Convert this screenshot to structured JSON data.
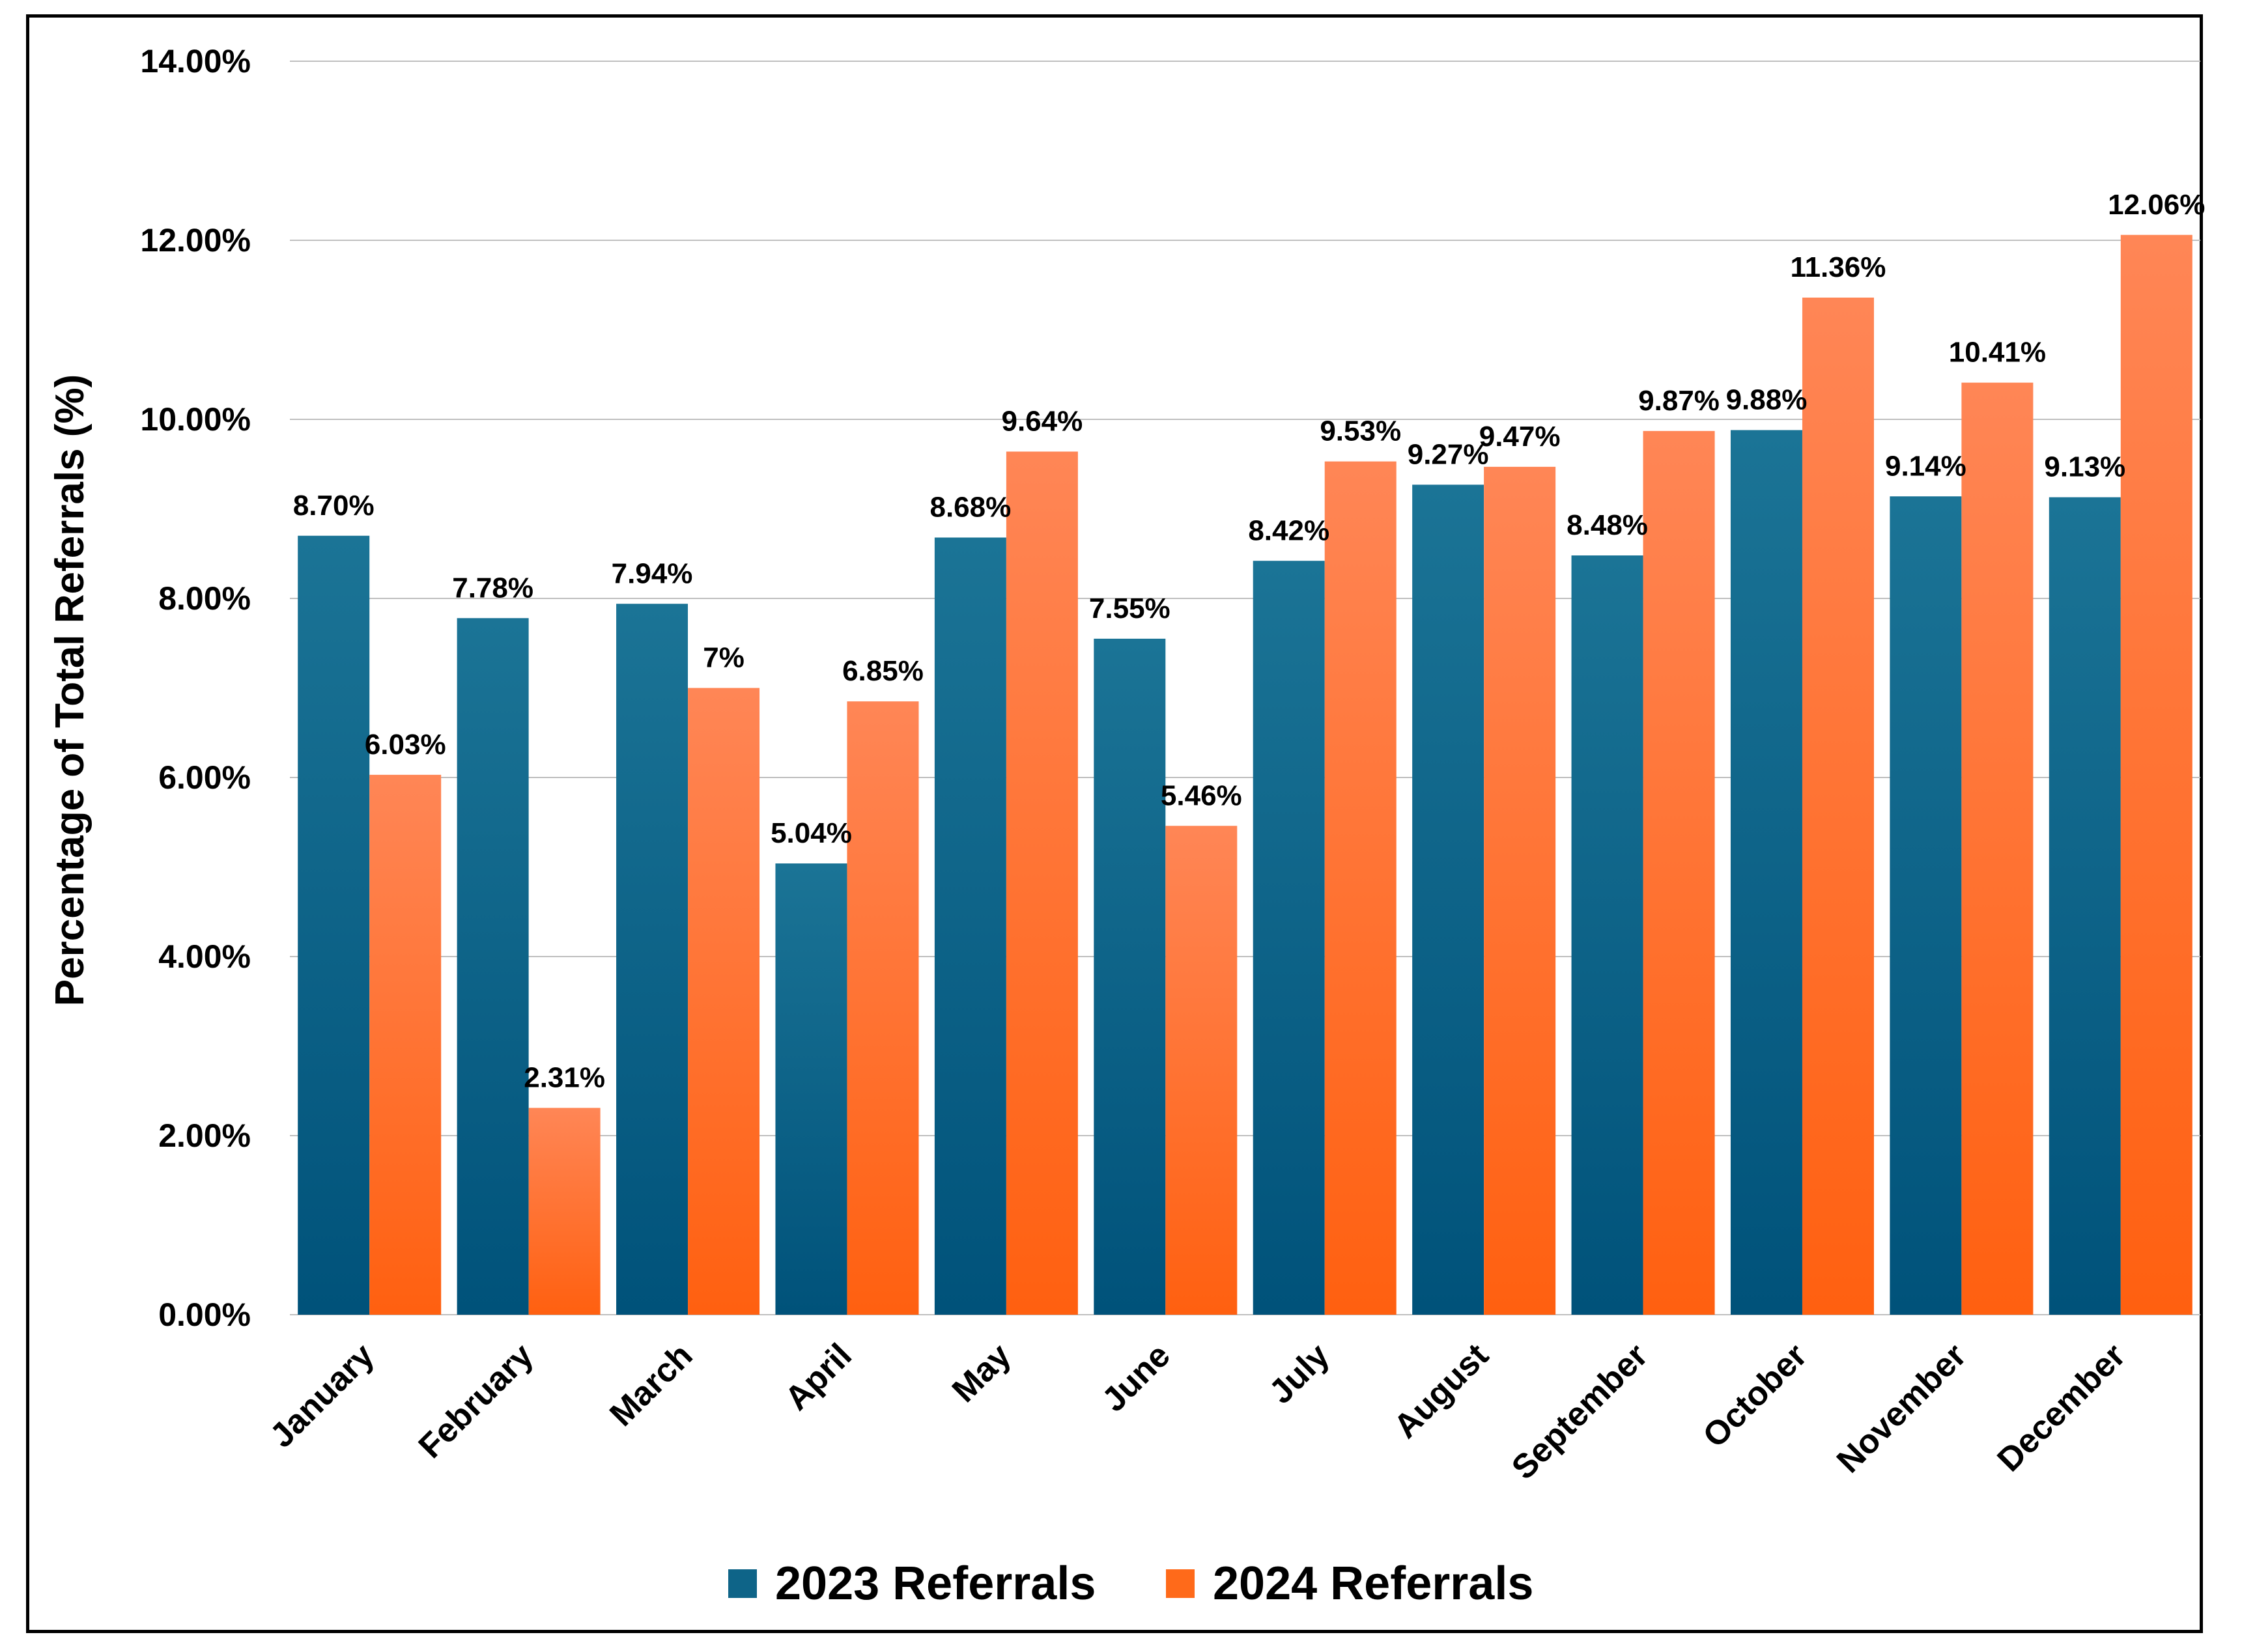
{
  "chart_data": {
    "type": "bar",
    "title": "",
    "xlabel": "",
    "ylabel": "Percentage of Total Referrals (%)",
    "ylim": [
      0,
      14
    ],
    "yticks": [
      "0.00%",
      "2.00%",
      "4.00%",
      "6.00%",
      "8.00%",
      "10.00%",
      "12.00%",
      "14.00%"
    ],
    "grid": true,
    "legend": "bottom",
    "categories": [
      "January",
      "February",
      "March",
      "April",
      "May",
      "June",
      "July",
      "August",
      "September",
      "October",
      "November",
      "December"
    ],
    "series": [
      {
        "name": "2023 Referrals",
        "color": "#0E6488",
        "values": [
          8.7,
          7.78,
          7.94,
          5.04,
          8.68,
          7.55,
          8.42,
          9.27,
          8.48,
          9.88,
          9.14,
          9.13
        ],
        "labels": [
          "8.70%",
          "7.78%",
          "7.94%",
          "5.04%",
          "8.68%",
          "7.55%",
          "8.42%",
          "9.27%",
          "8.48%",
          "9.88%",
          "9.14%",
          "9.13%"
        ]
      },
      {
        "name": "2024 Referrals",
        "color": "#FF6A1A",
        "values": [
          6.03,
          2.31,
          7.0,
          6.85,
          9.64,
          5.46,
          9.53,
          9.47,
          9.87,
          11.36,
          10.41,
          12.06
        ],
        "labels": [
          "6.03%",
          "2.31%",
          "7%",
          "6.85%",
          "9.64%",
          "5.46%",
          "9.53%",
          "9.47%",
          "9.87%",
          "11.36%",
          "10.41%",
          "12.06%"
        ]
      }
    ]
  }
}
